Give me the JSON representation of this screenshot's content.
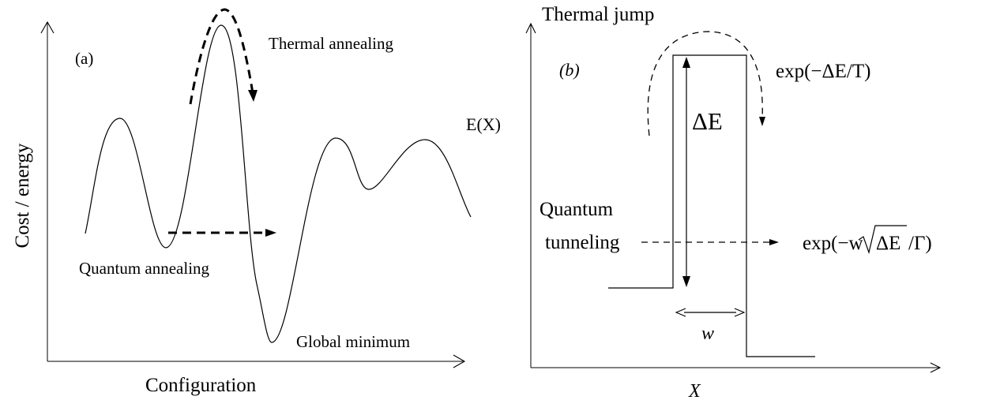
{
  "panel_a": {
    "tag": "(a)",
    "y_axis_label": "Cost / energy",
    "x_axis_label": "Configuration",
    "thermal_label": "Thermal annealing",
    "quantum_label": "Quantum annealing",
    "minimum_label": "Global minimum"
  },
  "panel_b": {
    "tag": "(b)",
    "title": "Thermal jump",
    "y_axis_label": "E(X)",
    "x_axis_label": "X",
    "delta_e_label": "ΔE",
    "width_label": "w",
    "tunneling_label_line1": "Quantum",
    "tunneling_label_line2": "tunneling",
    "thermal_rate": "exp(−ΔE/T)",
    "tunneling_rate_prefix": "exp(−w",
    "tunneling_rate_radicand": "ΔE",
    "tunneling_rate_suffix": "/Γ)"
  }
}
